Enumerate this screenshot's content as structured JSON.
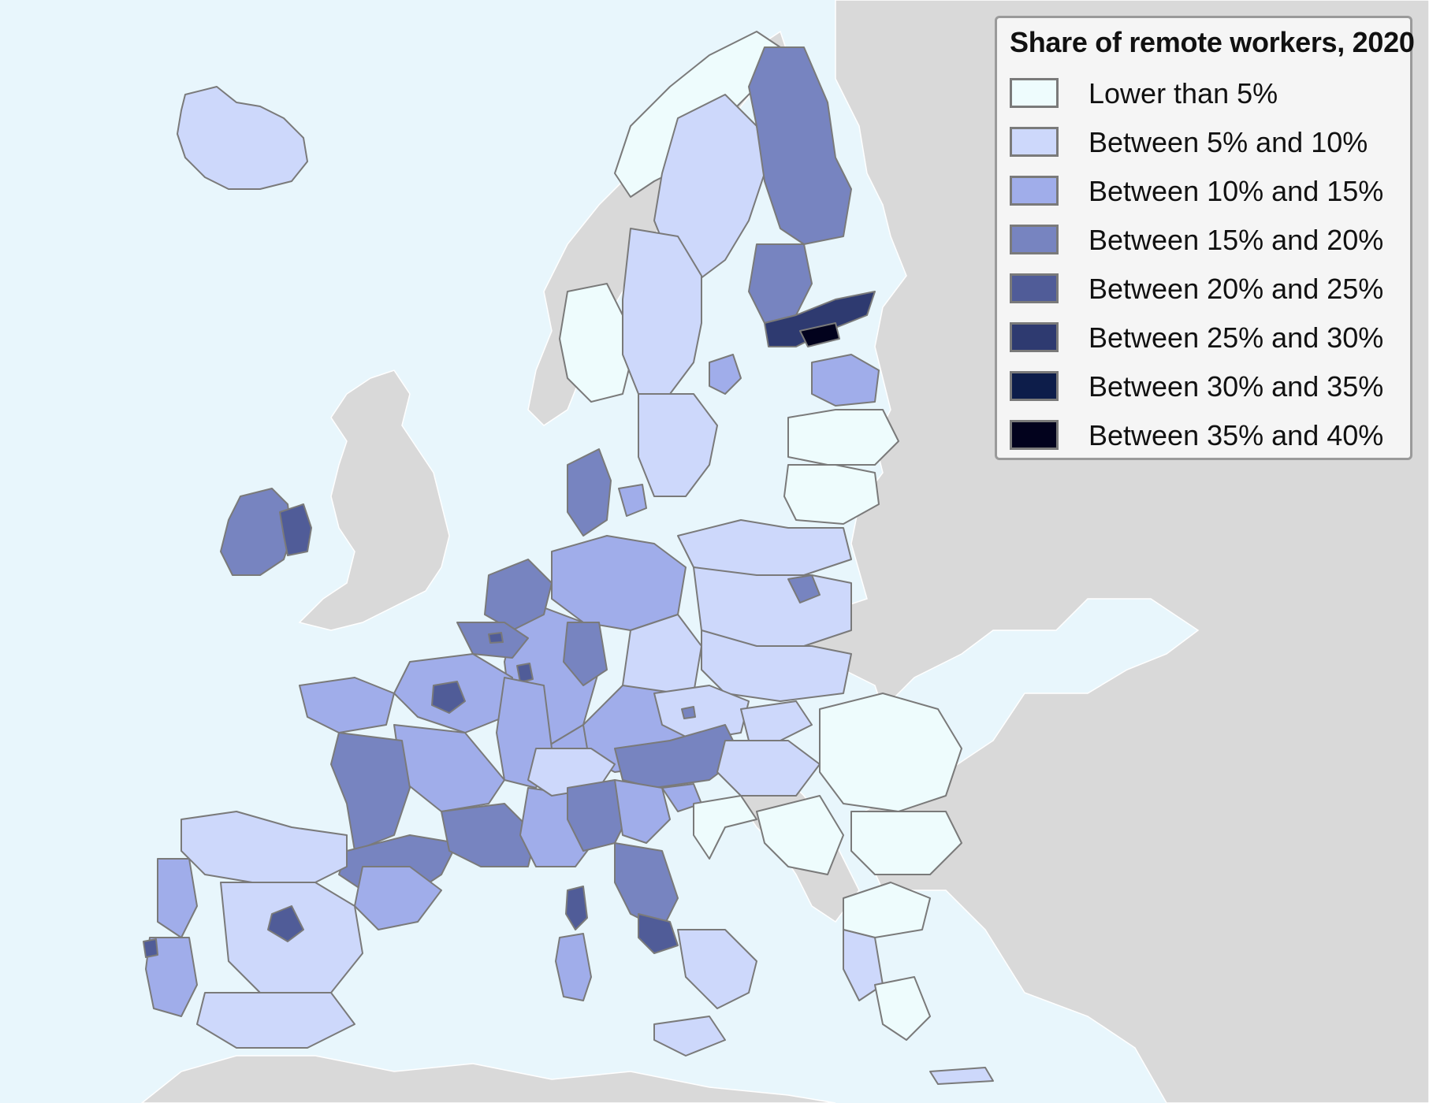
{
  "legend": {
    "title": "Share of remote workers, 2020",
    "items": [
      {
        "label": "Lower than 5%",
        "color": "#eefcfd"
      },
      {
        "label": "Between 5% and 10%",
        "color": "#cdd8fb"
      },
      {
        "label": "Between 10% and 15%",
        "color": "#a0adea"
      },
      {
        "label": "Between 15% and 20%",
        "color": "#7784c0"
      },
      {
        "label": "Between 20% and 25%",
        "color": "#505c98"
      },
      {
        "label": "Between 25% and 30%",
        "color": "#2e3a70"
      },
      {
        "label": "Between 30% and 35%",
        "color": "#0d1d4a"
      },
      {
        "label": "Between 35% and 40%",
        "color": "#02021d"
      }
    ]
  },
  "colors": {
    "sea": "#e8f6fc",
    "non_eu_land": "#d9d9d9",
    "border": "#7a7a7a"
  }
}
